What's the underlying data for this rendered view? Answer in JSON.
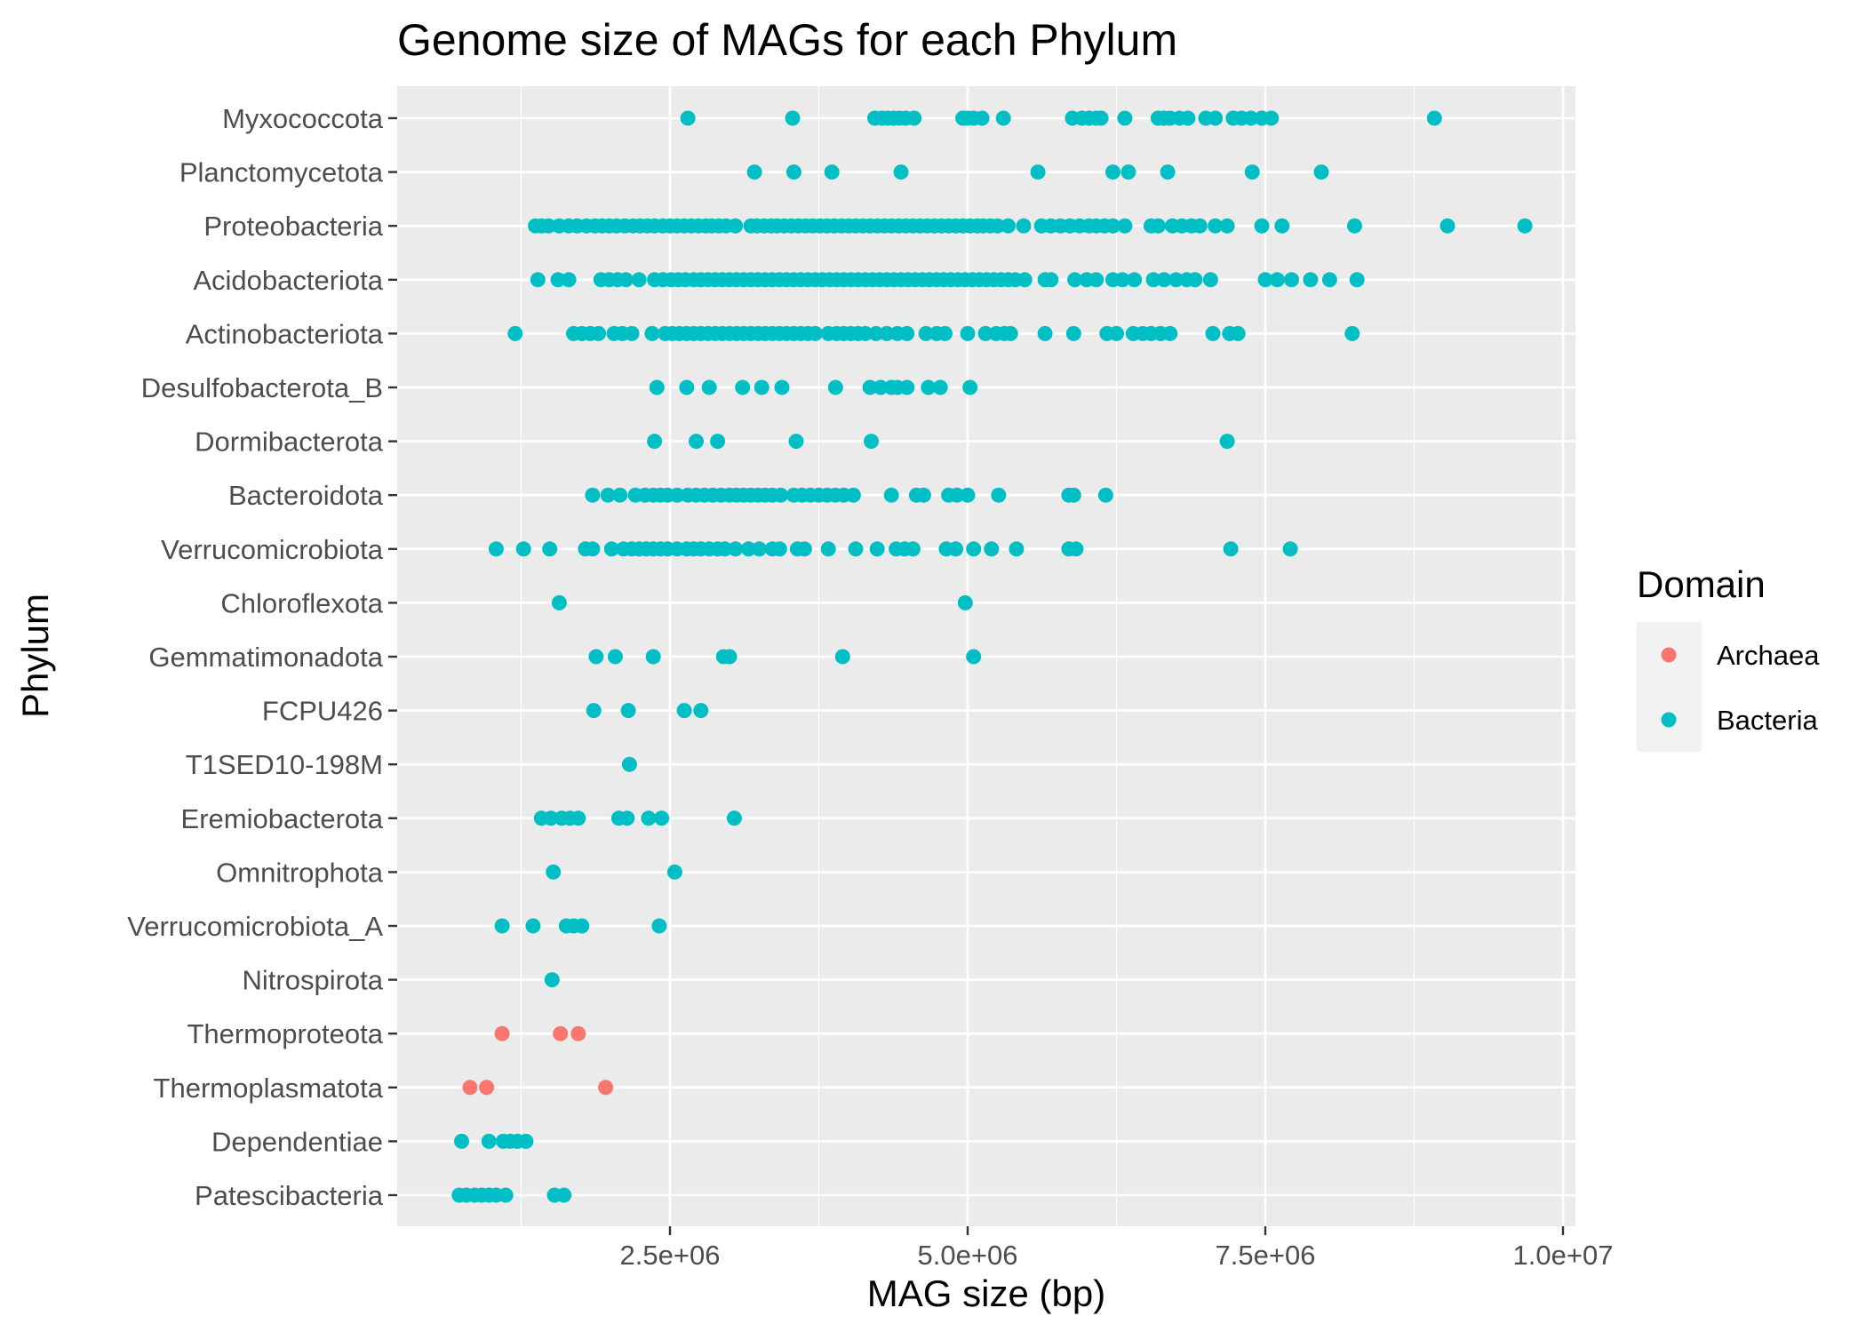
{
  "chart_data": {
    "type": "scatter",
    "title": "Genome size of MAGs for each Phylum",
    "xlabel": "MAG size (bp)",
    "ylabel": "Phylum",
    "xlim": [
      100000,
      10400000
    ],
    "x_ticks": [
      {
        "value": 2500000,
        "label": "2.5e+06"
      },
      {
        "value": 5000000,
        "label": "5.0e+06"
      },
      {
        "value": 7500000,
        "label": "7.5e+06"
      },
      {
        "value": 10000000,
        "label": "1.0e+07"
      }
    ],
    "grid": true,
    "legend": {
      "title": "Domain",
      "position": "right",
      "entries": [
        {
          "name": "Archaea",
          "color": "#F8766D"
        },
        {
          "name": "Bacteria",
          "color": "#00BFC4"
        }
      ]
    },
    "categories": [
      "Myxococcota",
      "Planctomycetota",
      "Proteobacteria",
      "Acidobacteriota",
      "Actinobacteriota",
      "Desulfobacterota_B",
      "Dormibacterota",
      "Bacteroidota",
      "Verrucomicrobiota",
      "Chloroflexota",
      "Gemmatimonadota",
      "FCPU426",
      "T1SED10-198M",
      "Eremiobacterota",
      "Omnitrophota",
      "Verrucomicrobiota_A",
      "Nitrospirota",
      "Thermoproteota",
      "Thermoplasmatota",
      "Dependentiae",
      "Patescibacteria"
    ],
    "series": [
      {
        "name": "Bacteria",
        "points": {
          "Myxococcota": [
            2650000,
            3530000,
            4220000,
            4280000,
            4330000,
            4380000,
            4430000,
            4480000,
            4550000,
            4960000,
            5000000,
            5050000,
            5120000,
            5300000,
            5880000,
            5960000,
            6020000,
            6080000,
            6120000,
            6320000,
            6600000,
            6650000,
            6700000,
            6780000,
            6850000,
            7000000,
            7080000,
            7230000,
            7300000,
            7380000,
            7470000,
            7550000,
            8920000
          ],
          "Planctomycetota": [
            3210000,
            3540000,
            3860000,
            4440000,
            5590000,
            6220000,
            6350000,
            6680000,
            7390000,
            7970000
          ],
          "Proteobacteria": [
            1370000,
            1420000,
            1480000,
            1570000,
            1650000,
            1720000,
            1800000,
            1870000,
            1930000,
            1990000,
            2050000,
            2120000,
            2190000,
            2250000,
            2310000,
            2370000,
            2440000,
            2500000,
            2560000,
            2620000,
            2680000,
            2740000,
            2800000,
            2850000,
            2910000,
            2970000,
            3050000,
            3180000,
            3230000,
            3290000,
            3350000,
            3400000,
            3460000,
            3520000,
            3580000,
            3640000,
            3700000,
            3760000,
            3820000,
            3880000,
            3940000,
            4000000,
            4060000,
            4120000,
            4180000,
            4240000,
            4300000,
            4360000,
            4420000,
            4480000,
            4540000,
            4600000,
            4660000,
            4720000,
            4780000,
            4840000,
            4900000,
            4960000,
            5020000,
            5080000,
            5130000,
            5190000,
            5250000,
            5340000,
            5470000,
            5620000,
            5700000,
            5780000,
            5860000,
            5940000,
            6020000,
            6080000,
            6150000,
            6220000,
            6320000,
            6540000,
            6600000,
            6720000,
            6800000,
            6880000,
            6950000,
            7080000,
            7180000,
            7470000,
            7640000,
            8250000,
            9030000,
            9680000
          ],
          "Acidobacteriota": [
            1390000,
            1560000,
            1650000,
            1920000,
            1990000,
            2060000,
            2130000,
            2240000,
            2370000,
            2440000,
            2510000,
            2570000,
            2630000,
            2700000,
            2760000,
            2820000,
            2880000,
            2940000,
            3000000,
            3060000,
            3120000,
            3180000,
            3240000,
            3300000,
            3360000,
            3420000,
            3480000,
            3540000,
            3600000,
            3660000,
            3720000,
            3780000,
            3840000,
            3900000,
            3960000,
            4020000,
            4080000,
            4140000,
            4200000,
            4260000,
            4320000,
            4380000,
            4440000,
            4500000,
            4560000,
            4620000,
            4680000,
            4740000,
            4800000,
            4860000,
            4920000,
            4980000,
            5040000,
            5100000,
            5160000,
            5220000,
            5280000,
            5340000,
            5400000,
            5480000,
            5650000,
            5700000,
            5900000,
            6000000,
            6080000,
            6220000,
            6300000,
            6400000,
            6560000,
            6650000,
            6750000,
            6840000,
            6910000,
            7040000,
            7500000,
            7600000,
            7720000,
            7880000,
            8040000,
            8270000
          ],
          "Actinobacteriota": [
            1200000,
            1690000,
            1760000,
            1830000,
            1900000,
            2030000,
            2100000,
            2180000,
            2350000,
            2460000,
            2520000,
            2580000,
            2640000,
            2700000,
            2760000,
            2820000,
            2880000,
            2940000,
            3000000,
            3060000,
            3120000,
            3180000,
            3240000,
            3300000,
            3360000,
            3420000,
            3480000,
            3540000,
            3600000,
            3660000,
            3720000,
            3830000,
            3900000,
            3960000,
            4020000,
            4080000,
            4140000,
            4230000,
            4320000,
            4410000,
            4490000,
            4650000,
            4740000,
            4810000,
            5000000,
            5150000,
            5240000,
            5310000,
            5360000,
            5650000,
            5890000,
            6170000,
            6250000,
            6390000,
            6470000,
            6540000,
            6620000,
            6700000,
            7060000,
            7200000,
            7270000,
            8230000
          ],
          "Desulfobacterota_B": [
            2390000,
            2640000,
            2830000,
            3110000,
            3270000,
            3440000,
            3890000,
            4180000,
            4270000,
            4360000,
            4410000,
            4490000,
            4670000,
            4770000,
            5020000
          ],
          "Dormibacterota": [
            2370000,
            2720000,
            2900000,
            3560000,
            4190000,
            7180000
          ],
          "Bacteroidota": [
            1850000,
            1980000,
            2080000,
            2210000,
            2290000,
            2360000,
            2420000,
            2480000,
            2560000,
            2650000,
            2720000,
            2790000,
            2860000,
            2930000,
            3000000,
            3060000,
            3120000,
            3180000,
            3240000,
            3300000,
            3360000,
            3430000,
            3540000,
            3610000,
            3680000,
            3750000,
            3820000,
            3890000,
            3960000,
            4040000,
            4360000,
            4570000,
            4630000,
            4840000,
            4910000,
            5000000,
            5260000,
            5850000,
            5890000,
            6160000
          ],
          "Verrucomicrobiota": [
            1040000,
            1270000,
            1490000,
            1790000,
            1850000,
            2010000,
            2110000,
            2180000,
            2240000,
            2300000,
            2360000,
            2420000,
            2480000,
            2560000,
            2640000,
            2700000,
            2760000,
            2830000,
            2900000,
            2960000,
            3050000,
            3160000,
            3250000,
            3360000,
            3420000,
            3570000,
            3630000,
            3830000,
            4060000,
            4240000,
            4400000,
            4470000,
            4540000,
            4820000,
            4900000,
            5050000,
            5200000,
            5410000,
            5850000,
            5910000,
            7210000,
            7710000
          ],
          "Chloroflexota": [
            1570000,
            4980000
          ],
          "Gemmatimonadota": [
            1880000,
            2040000,
            2360000,
            2950000,
            3000000,
            3950000,
            5050000
          ],
          "FCPU426": [
            1860000,
            2150000,
            2620000,
            2760000
          ],
          "T1SED10-198M": [
            2160000
          ],
          "Eremiobacterota": [
            1420000,
            1500000,
            1590000,
            1660000,
            1730000,
            2070000,
            2140000,
            2320000,
            2430000,
            3040000
          ],
          "Omnitrophota": [
            1520000,
            2540000
          ],
          "Verrucomicrobiota_A": [
            1090000,
            1350000,
            1630000,
            1690000,
            1760000,
            2410000
          ],
          "Nitrospirota": [
            1510000
          ],
          "Dependentiae": [
            750000,
            980000,
            1100000,
            1160000,
            1220000,
            1290000
          ],
          "Patescibacteria": [
            730000,
            790000,
            860000,
            920000,
            980000,
            1040000,
            1120000,
            1530000,
            1610000
          ]
        }
      },
      {
        "name": "Archaea",
        "points": {
          "Thermoproteota": [
            1090000,
            1580000,
            1730000
          ],
          "Thermoplasmatota": [
            820000,
            960000,
            1960000
          ]
        }
      }
    ]
  }
}
